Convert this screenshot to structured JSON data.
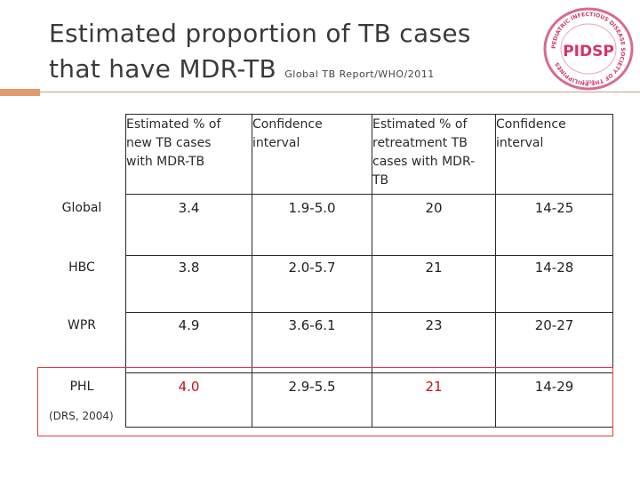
{
  "slide": {
    "title_line1": "Estimated proportion of TB cases",
    "title_line2": "that have MDR-TB",
    "source": "Global TB Report/WHO/2011",
    "logo_text": "PIDSP",
    "logo_arc": "PEDIATRIC INFECTIOUS DISEASE SOCIETY OF THE PHILIPPINES",
    "logo_year": "1993"
  },
  "table": {
    "headers": [
      "",
      "Estimated % of new TB cases with MDR-TB",
      "Confidence interval",
      "Estimated % of retreatment TB cases with MDR-TB",
      "Confidence interval"
    ],
    "header_lines": {
      "h1": [
        "Estimated % of",
        "new TB cases",
        "with MDR-TB"
      ],
      "h2": [
        "Confidence",
        "interval"
      ],
      "h3": [
        "Estimated % of",
        "retreatment TB",
        "cases with MDR-",
        "TB"
      ],
      "h4": [
        "Confidence",
        "interval"
      ]
    },
    "rows": [
      {
        "label": "Global",
        "new_pct": "3.4",
        "new_ci": "1.9-5.0",
        "re_pct": "20",
        "re_ci": "14-25"
      },
      {
        "label": "HBC",
        "new_pct": "3.8",
        "new_ci": "2.0-5.7",
        "re_pct": "21",
        "re_ci": "14-28"
      },
      {
        "label": "WPR",
        "new_pct": "4.9",
        "new_ci": "3.6-6.1",
        "re_pct": "23",
        "re_ci": "20-27"
      },
      {
        "label": "PHL",
        "new_pct": "4.0",
        "new_ci": "2.9-5.5",
        "re_pct": "21",
        "re_ci": "14-29"
      }
    ],
    "phl_note": "(DRS, 2004)",
    "highlight_color": "#c0141c",
    "box_color": "#e0393e"
  }
}
